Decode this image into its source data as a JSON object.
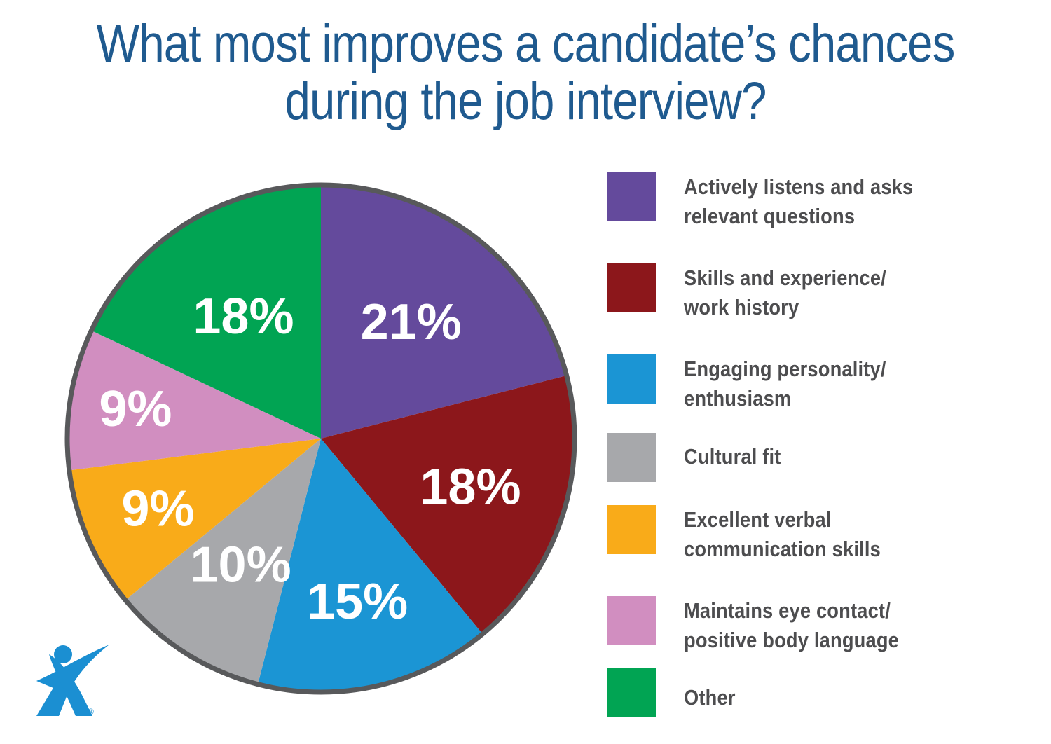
{
  "title_lines": [
    "What most improves a candidate’s chances",
    "during the job interview?"
  ],
  "chart_data": {
    "type": "pie",
    "title": "What most improves a candidate’s chances during the job interview?",
    "unit": "%",
    "slices": [
      {
        "label": "Actively listens and asks relevant questions",
        "value": 21,
        "display": "21%",
        "color": "#644a9c"
      },
      {
        "label": "Skills and experience/ work history",
        "value": 18,
        "display": "18%",
        "color": "#8c171b"
      },
      {
        "label": "Engaging personality/ enthusiasm",
        "value": 15,
        "display": "15%",
        "color": "#1b95d4"
      },
      {
        "label": "Cultural fit",
        "value": 10,
        "display": "10%",
        "color": "#a7a8ab"
      },
      {
        "label": "Excellent verbal communication skills",
        "value": 9,
        "display": "9%",
        "color": "#f9ab19"
      },
      {
        "label": "Maintains eye contact/ positive body language",
        "value": 9,
        "display": "9%",
        "color": "#d18ec0"
      },
      {
        "label": "Other",
        "value": 18,
        "display": "18%",
        "color": "#01a453"
      }
    ],
    "legend": {
      "position": "right"
    }
  },
  "legend_items": [
    {
      "lines": [
        "Actively listens and asks",
        "relevant questions"
      ],
      "color": "#644a9c"
    },
    {
      "lines": [
        "Skills and experience/",
        "work history"
      ],
      "color": "#8c171b"
    },
    {
      "lines": [
        "Engaging personality/",
        "enthusiasm"
      ],
      "color": "#1b95d4"
    },
    {
      "lines": [
        "Cultural fit"
      ],
      "color": "#a7a8ab"
    },
    {
      "lines": [
        "Excellent verbal",
        "communication skills"
      ],
      "color": "#f9ab19"
    },
    {
      "lines": [
        "Maintains eye contact/",
        "positive body language"
      ],
      "color": "#d18ec0"
    },
    {
      "lines": [
        "Other"
      ],
      "color": "#01a453"
    }
  ],
  "logo": {
    "icon": "running-person-x-logo-icon",
    "color": "#1b8fd2",
    "mark": "®"
  }
}
